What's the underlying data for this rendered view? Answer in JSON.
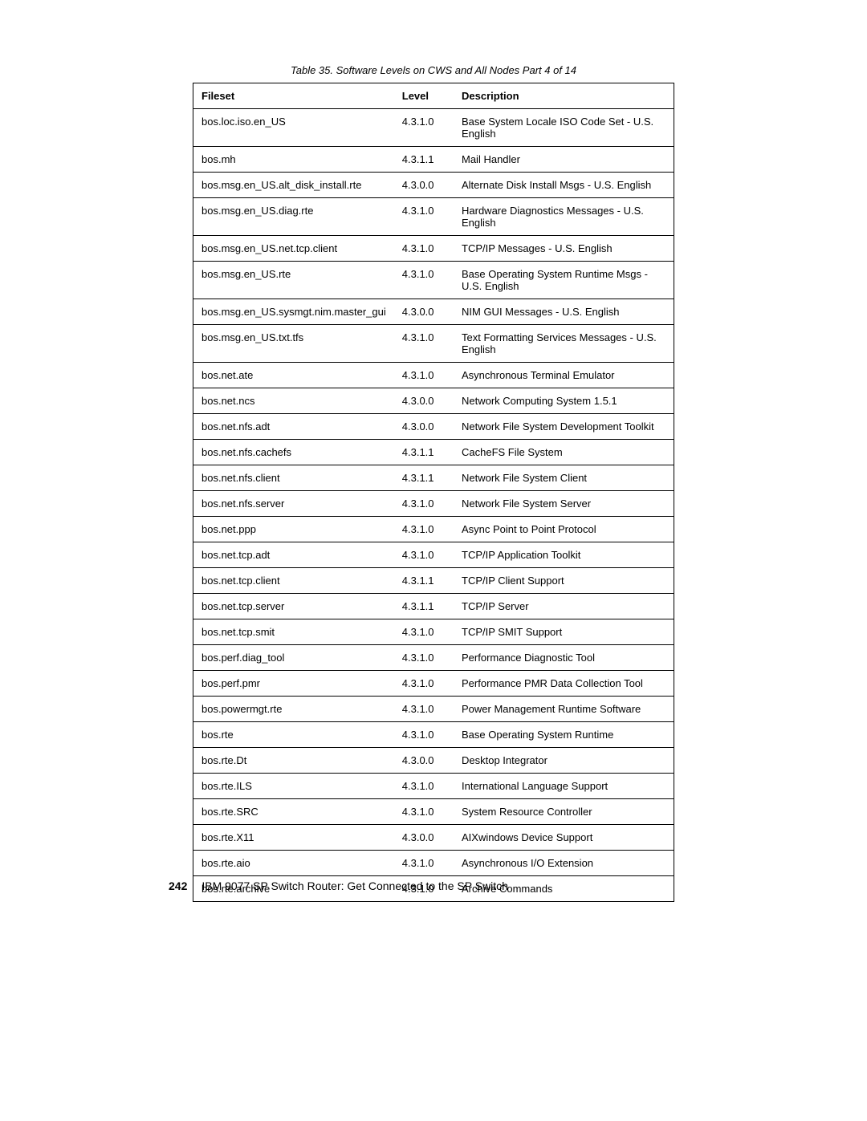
{
  "caption": "Table 35.  Software Levels on CWS and All Nodes Part 4 of 14",
  "headers": {
    "fileset": "Fileset",
    "level": "Level",
    "description": "Description"
  },
  "rows": [
    {
      "fileset": "bos.loc.iso.en_US",
      "level": "4.3.1.0",
      "description": "Base System Locale ISO Code Set - U.S. English"
    },
    {
      "fileset": "bos.mh",
      "level": "4.3.1.1",
      "description": "Mail Handler"
    },
    {
      "fileset": "bos.msg.en_US.alt_disk_install.rte",
      "level": "4.3.0.0",
      "description": "Alternate Disk Install Msgs - U.S. English"
    },
    {
      "fileset": "bos.msg.en_US.diag.rte",
      "level": "4.3.1.0",
      "description": "Hardware Diagnostics Messages - U.S. English"
    },
    {
      "fileset": "bos.msg.en_US.net.tcp.client",
      "level": "4.3.1.0",
      "description": "TCP/IP Messages - U.S. English"
    },
    {
      "fileset": "bos.msg.en_US.rte",
      "level": "4.3.1.0",
      "description": "Base Operating System Runtime Msgs - U.S. English"
    },
    {
      "fileset": "bos.msg.en_US.sysmgt.nim.master_gui",
      "level": "4.3.0.0",
      "description": "NIM GUI Messages - U.S. English"
    },
    {
      "fileset": "bos.msg.en_US.txt.tfs",
      "level": "4.3.1.0",
      "description": "Text Formatting Services Messages - U.S. English"
    },
    {
      "fileset": "bos.net.ate",
      "level": "4.3.1.0",
      "description": "Asynchronous Terminal Emulator"
    },
    {
      "fileset": "bos.net.ncs",
      "level": "4.3.0.0",
      "description": "Network Computing System 1.5.1"
    },
    {
      "fileset": "bos.net.nfs.adt",
      "level": "4.3.0.0",
      "description": "Network File System Development Toolkit"
    },
    {
      "fileset": "bos.net.nfs.cachefs",
      "level": "4.3.1.1",
      "description": "CacheFS File System"
    },
    {
      "fileset": "bos.net.nfs.client",
      "level": "4.3.1.1",
      "description": "Network File System Client"
    },
    {
      "fileset": "bos.net.nfs.server",
      "level": "4.3.1.0",
      "description": "Network File System Server"
    },
    {
      "fileset": "bos.net.ppp",
      "level": "4.3.1.0",
      "description": "Async Point to Point Protocol"
    },
    {
      "fileset": "bos.net.tcp.adt",
      "level": "4.3.1.0",
      "description": "TCP/IP Application Toolkit"
    },
    {
      "fileset": "bos.net.tcp.client",
      "level": "4.3.1.1",
      "description": "TCP/IP Client Support"
    },
    {
      "fileset": "bos.net.tcp.server",
      "level": "4.3.1.1",
      "description": "TCP/IP Server"
    },
    {
      "fileset": "bos.net.tcp.smit",
      "level": "4.3.1.0",
      "description": "TCP/IP SMIT Support"
    },
    {
      "fileset": "bos.perf.diag_tool",
      "level": "4.3.1.0",
      "description": "Performance Diagnostic Tool"
    },
    {
      "fileset": "bos.perf.pmr",
      "level": "4.3.1.0",
      "description": "Performance PMR Data Collection Tool"
    },
    {
      "fileset": "bos.powermgt.rte",
      "level": "4.3.1.0",
      "description": "Power Management Runtime Software"
    },
    {
      "fileset": "bos.rte",
      "level": "4.3.1.0",
      "description": "Base Operating System Runtime"
    },
    {
      "fileset": "bos.rte.Dt",
      "level": "4.3.0.0",
      "description": "Desktop Integrator"
    },
    {
      "fileset": "bos.rte.ILS",
      "level": "4.3.1.0",
      "description": "International Language Support"
    },
    {
      "fileset": "bos.rte.SRC",
      "level": "4.3.1.0",
      "description": "System Resource Controller"
    },
    {
      "fileset": "bos.rte.X11",
      "level": "4.3.0.0",
      "description": "AIXwindows Device Support"
    },
    {
      "fileset": "bos.rte.aio",
      "level": "4.3.1.0",
      "description": "Asynchronous I/O Extension"
    },
    {
      "fileset": "bos.rte.archive",
      "level": "4.3.1.0",
      "description": "Archive Commands"
    }
  ],
  "footer": {
    "page_number": "242",
    "text": "IBM 9077 SP Switch Router: Get Connected to the SP Switch"
  }
}
